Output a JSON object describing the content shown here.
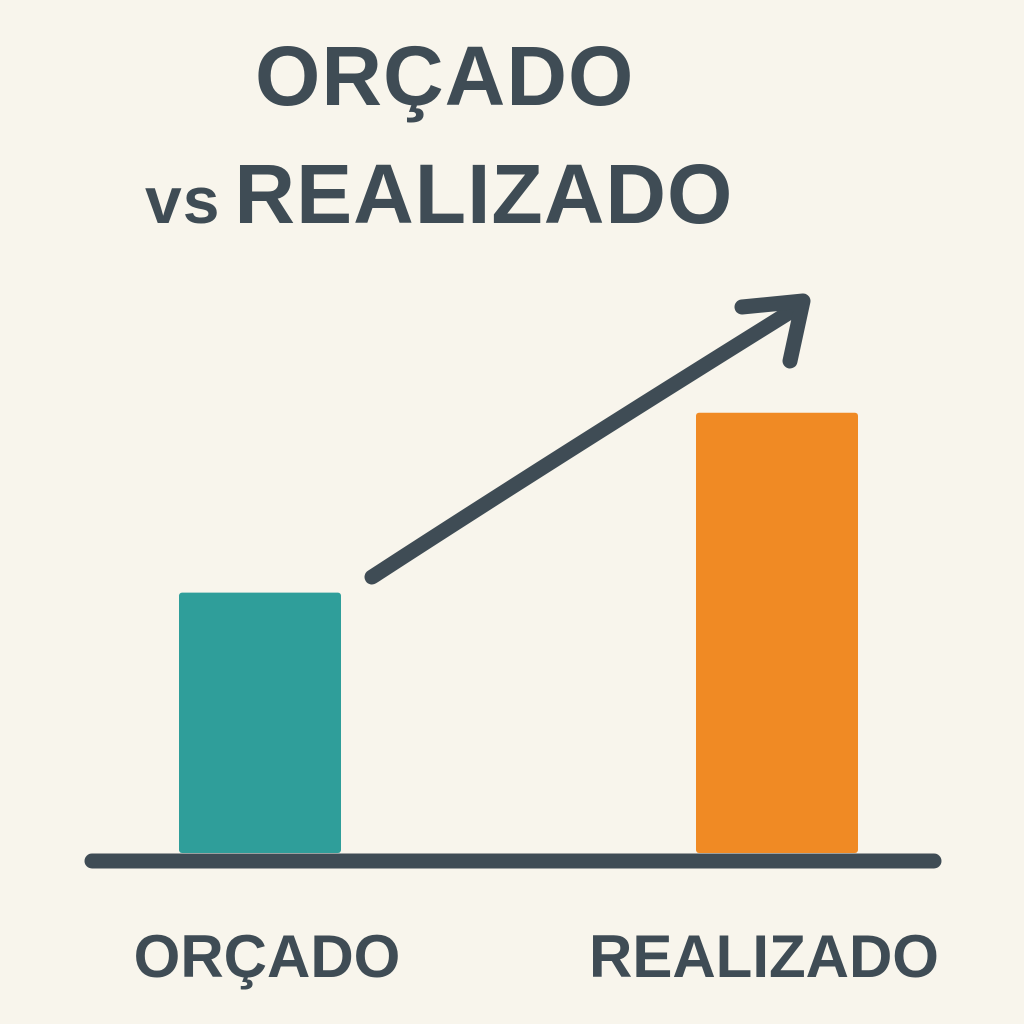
{
  "title": {
    "line1": "ORÇADO",
    "line2_prefix": "vs",
    "line2_main": "REALIZADO"
  },
  "chart_data": {
    "type": "bar",
    "title": "ORÇADO vs REALIZADO",
    "categories": [
      "ORÇADO",
      "REALIZADO"
    ],
    "values": [
      42,
      71
    ],
    "colors": [
      "#2f9e9a",
      "#f08a24"
    ],
    "ylim": [
      0,
      100
    ],
    "grid": false,
    "legend": "none",
    "annotations": [
      "upward-trend-arrow"
    ]
  },
  "colors": {
    "text": "#3f4c55",
    "background": "#f8f5ec"
  }
}
